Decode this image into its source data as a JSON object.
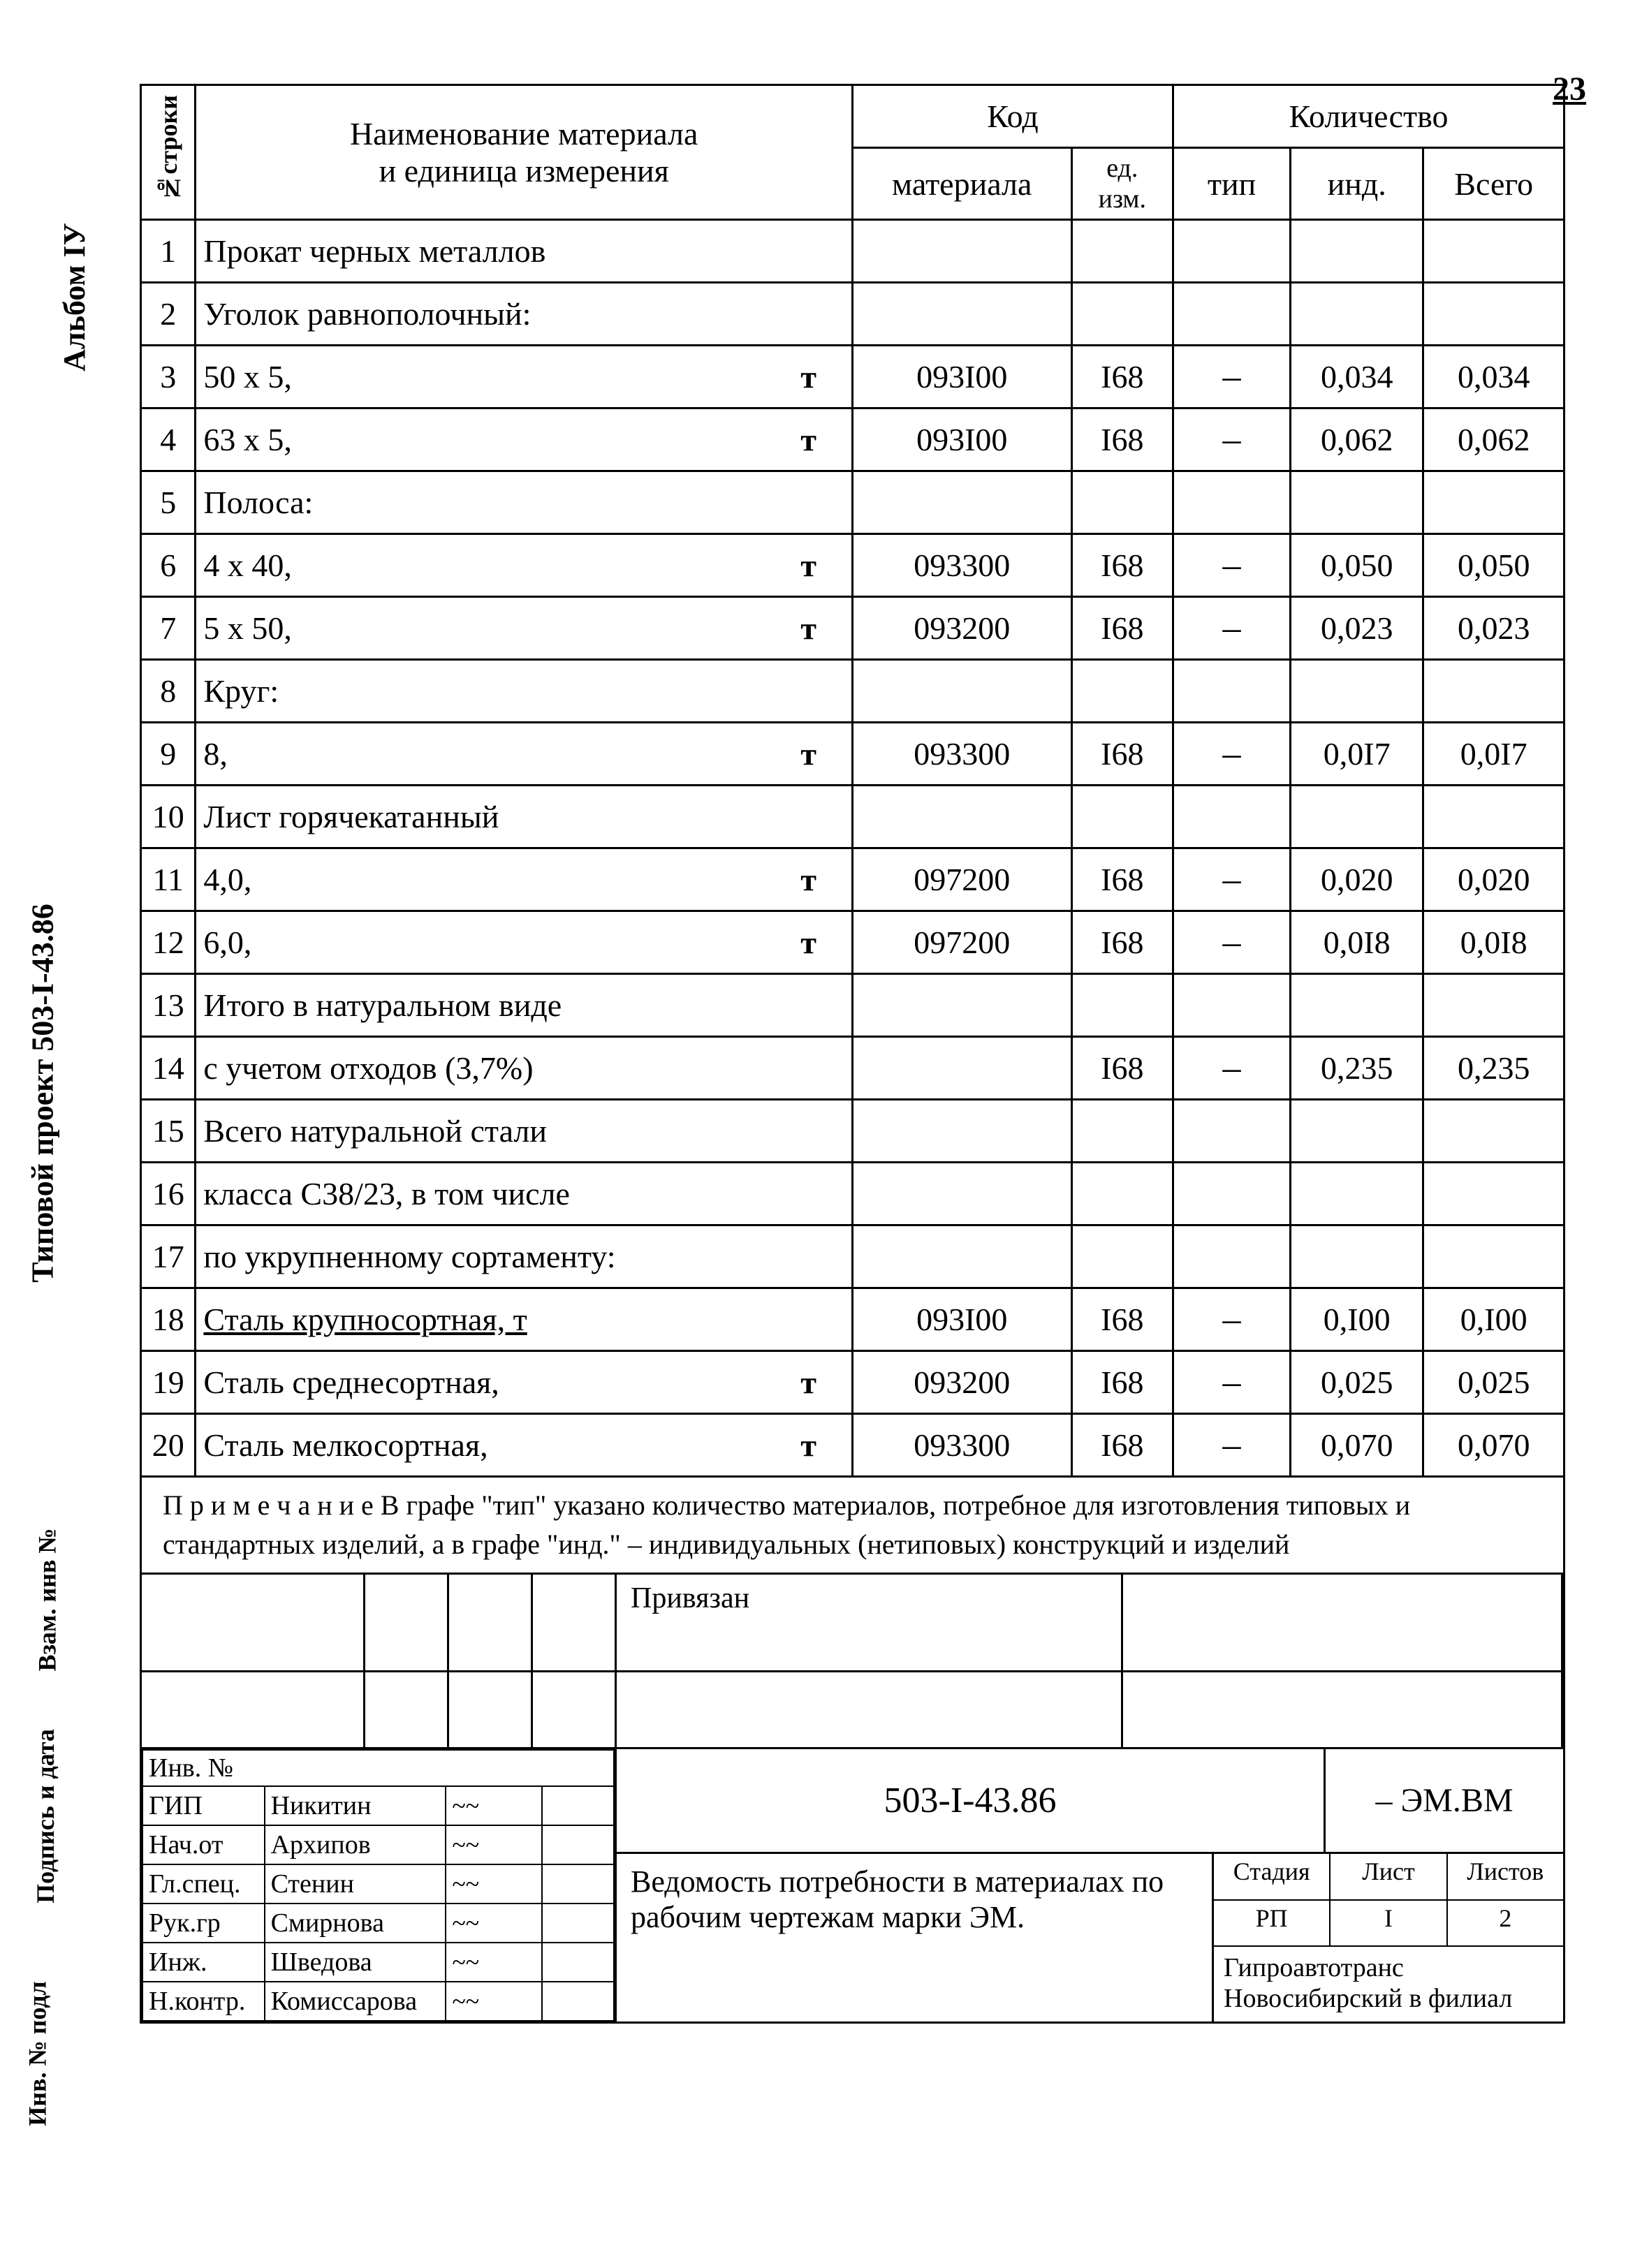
{
  "page_number": "23",
  "vertical_labels": {
    "album": "Альбом  IУ",
    "project": "Типовой проект 503-I-43.86",
    "vzam": "Взам. инв №",
    "podpis": "Подпись и дата",
    "inv": "Инв. № подл"
  },
  "headers": {
    "row_num": "№строки",
    "name": "Наименование материала\nи единица измерения",
    "code": "Код",
    "mat_code": "материала",
    "unit": "ед.\nизм.",
    "qty": "Количество",
    "tip": "тип",
    "ind": "инд.",
    "total": "Всего"
  },
  "rows": [
    {
      "n": "1",
      "name": "Прокат черных металлов",
      "u": "",
      "code": "",
      "unit": "",
      "tip": "",
      "ind": "",
      "total": ""
    },
    {
      "n": "2",
      "name": "Уголок равнополочный:",
      "u": "",
      "code": "",
      "unit": "",
      "tip": "",
      "ind": "",
      "total": ""
    },
    {
      "n": "3",
      "name": "50 х 5,",
      "u": "т",
      "code": "093I00",
      "unit": "I68",
      "tip": "–",
      "ind": "0,034",
      "total": "0,034"
    },
    {
      "n": "4",
      "name": "63 х 5,",
      "u": "т",
      "code": "093I00",
      "unit": "I68",
      "tip": "–",
      "ind": "0,062",
      "total": "0,062"
    },
    {
      "n": "5",
      "name": "Полоса:",
      "u": "",
      "code": "",
      "unit": "",
      "tip": "",
      "ind": "",
      "total": ""
    },
    {
      "n": "6",
      "name": "4 х 40,",
      "u": "т",
      "code": "093300",
      "unit": "I68",
      "tip": "–",
      "ind": "0,050",
      "total": "0,050"
    },
    {
      "n": "7",
      "name": "5 х 50,",
      "u": "т",
      "code": "093200",
      "unit": "I68",
      "tip": "–",
      "ind": "0,023",
      "total": "0,023"
    },
    {
      "n": "8",
      "name": "Круг:",
      "u": "",
      "code": "",
      "unit": "",
      "tip": "",
      "ind": "",
      "total": ""
    },
    {
      "n": "9",
      "name": "8,",
      "u": "т",
      "code": "093300",
      "unit": "I68",
      "tip": "–",
      "ind": "0,0I7",
      "total": "0,0I7"
    },
    {
      "n": "10",
      "name": "Лист горячекатанный",
      "u": "",
      "code": "",
      "unit": "",
      "tip": "",
      "ind": "",
      "total": ""
    },
    {
      "n": "11",
      "name": "4,0,",
      "u": "т",
      "code": "097200",
      "unit": "I68",
      "tip": "–",
      "ind": "0,020",
      "total": "0,020"
    },
    {
      "n": "12",
      "name": "6,0,",
      "u": "т",
      "code": "097200",
      "unit": "I68",
      "tip": "–",
      "ind": "0,0I8",
      "total": "0,0I8"
    },
    {
      "n": "13",
      "name": "Итого в натуральном виде",
      "u": "",
      "code": "",
      "unit": "",
      "tip": "",
      "ind": "",
      "total": ""
    },
    {
      "n": "14",
      "name": "с учетом отходов (3,7%)",
      "u": "",
      "code": "",
      "unit": "I68",
      "tip": "–",
      "ind": "0,235",
      "total": "0,235"
    },
    {
      "n": "15",
      "name": "Всего натуральной стали",
      "u": "",
      "code": "",
      "unit": "",
      "tip": "",
      "ind": "",
      "total": ""
    },
    {
      "n": "16",
      "name": "класса С38/23, в том числе",
      "u": "",
      "code": "",
      "unit": "",
      "tip": "",
      "ind": "",
      "total": ""
    },
    {
      "n": "17",
      "name": "по укрупненному сортаменту:",
      "u": "",
      "code": "",
      "unit": "",
      "tip": "",
      "ind": "",
      "total": ""
    },
    {
      "n": "18",
      "name": "Сталь крупносортная, т",
      "u": "",
      "code": "093I00",
      "unit": "I68",
      "tip": "–",
      "ind": "0,I00",
      "total": "0,I00",
      "underline": true
    },
    {
      "n": "19",
      "name": "Сталь среднесортная,",
      "u": "т",
      "code": "093200",
      "unit": "I68",
      "tip": "–",
      "ind": "0,025",
      "total": "0,025"
    },
    {
      "n": "20",
      "name": "Сталь мелкосортная,",
      "u": "т",
      "code": "093300",
      "unit": "I68",
      "tip": "–",
      "ind": "0,070",
      "total": "0,070"
    }
  ],
  "note": "П р и м е ч а н и е  В графе \"тип\" указано количество материалов, потребное для изготовления типовых и стандартных изделий, а в графе \"инд.\" – индивидуальных (нетиповых) конструкций и изделий",
  "privyazan": "Привязан",
  "inv_label": "Инв. №",
  "roles": [
    {
      "role": "ГИП",
      "name": "Никитин"
    },
    {
      "role": "Нач.от",
      "name": "Архипов"
    },
    {
      "role": "Гл.спец.",
      "name": "Стенин"
    },
    {
      "role": "Рук.гр",
      "name": "Смирнова"
    },
    {
      "role": "Инж.",
      "name": "Шведова"
    },
    {
      "role": "Н.контр.",
      "name": "Комиссарова"
    }
  ],
  "title_block": {
    "docnum": "503-I-43.86",
    "suffix": "– ЭМ.ВМ",
    "title": "Ведомость потребности в материалах по рабочим чертежам марки ЭМ.",
    "stage_label": "Стадия",
    "sheet_label": "Лист",
    "sheets_label": "Листов",
    "stage": "РП",
    "sheet": "I",
    "sheets": "2",
    "org": "Гипроавтотранс Новосибирский в филиал"
  }
}
